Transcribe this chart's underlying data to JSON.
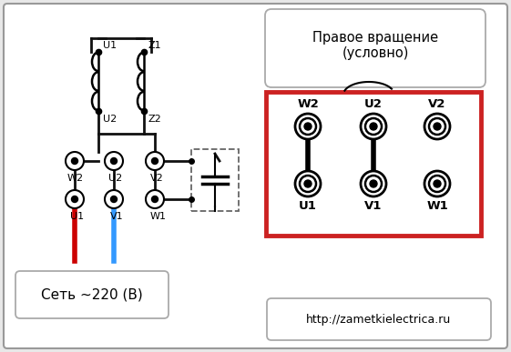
{
  "bg_color": "#e8e8e8",
  "panel_bg": "#ffffff",
  "title_text": "Правое вращение\n(условно)",
  "network_text": "Сеть ~220 (В)",
  "url_text": "http://zametkielectrica.ru",
  "red_wire_color": "#cc0000",
  "blue_wire_color": "#3399ff",
  "right_box_color": "#cc2222",
  "dashed_box_color": "#666666",
  "wire_color": "#111111",
  "lw_wire": 2.0,
  "lw_coil": 1.8
}
